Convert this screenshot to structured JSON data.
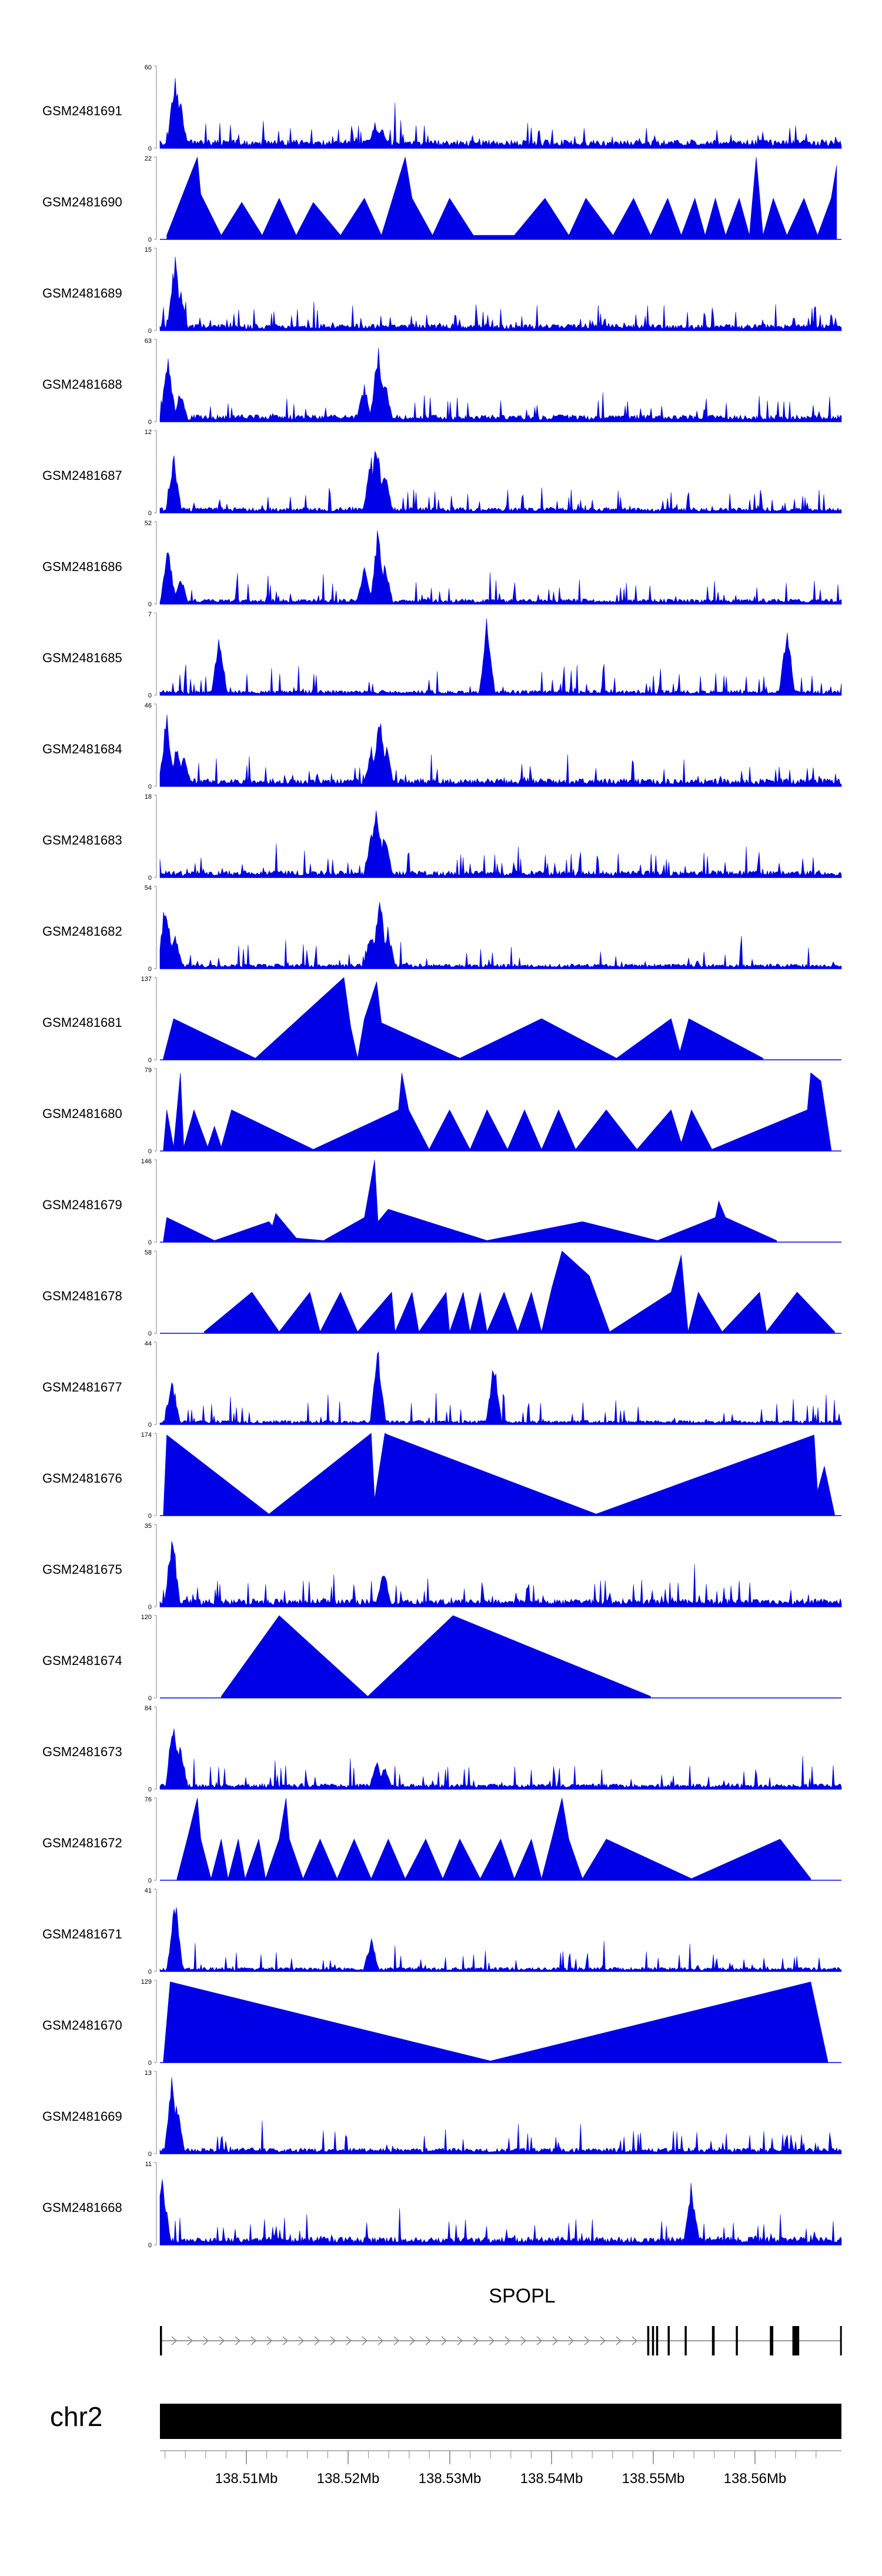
{
  "chart_data": {
    "type": "area",
    "title": "",
    "chromosome": "chr2",
    "gene": {
      "name": "SPOPL",
      "strand": "+"
    },
    "x": {
      "label": "",
      "ticks": [
        "138.51Mb",
        "138.52Mb",
        "138.53Mb",
        "138.54Mb",
        "138.55Mb",
        "138.56Mb"
      ],
      "tick_values": [
        138.51,
        138.52,
        138.53,
        138.54,
        138.55,
        138.56
      ],
      "range": [
        138.5015,
        138.5685
      ]
    },
    "tracks": [
      {
        "name": "GSM2481691",
        "ymax": "60",
        "ymin": "0",
        "style": "dense",
        "peaks": [
          [
            0.022,
            1.0
          ],
          [
            0.03,
            0.6
          ],
          [
            0.316,
            0.33
          ],
          [
            0.325,
            0.3
          ]
        ]
      },
      {
        "name": "GSM2481690",
        "ymax": "22",
        "ymin": "0",
        "style": "sparse",
        "peaks": [
          [
            0.01,
            0.05
          ],
          [
            0.055,
            1.0
          ],
          [
            0.06,
            0.55
          ],
          [
            0.09,
            0.05
          ],
          [
            0.12,
            0.45
          ],
          [
            0.15,
            0.05
          ],
          [
            0.175,
            0.5
          ],
          [
            0.2,
            0.05
          ],
          [
            0.225,
            0.45
          ],
          [
            0.265,
            0.05
          ],
          [
            0.3,
            0.5
          ],
          [
            0.325,
            0.05
          ],
          [
            0.36,
            1.0
          ],
          [
            0.37,
            0.5
          ],
          [
            0.4,
            0.05
          ],
          [
            0.425,
            0.5
          ],
          [
            0.46,
            0.05
          ],
          [
            0.52,
            0.05
          ],
          [
            0.565,
            0.5
          ],
          [
            0.6,
            0.05
          ],
          [
            0.625,
            0.5
          ],
          [
            0.665,
            0.05
          ],
          [
            0.695,
            0.5
          ],
          [
            0.72,
            0.05
          ],
          [
            0.745,
            0.5
          ],
          [
            0.765,
            0.05
          ],
          [
            0.785,
            0.5
          ],
          [
            0.8,
            0.05
          ],
          [
            0.815,
            0.5
          ],
          [
            0.83,
            0.05
          ],
          [
            0.85,
            0.5
          ],
          [
            0.865,
            0.05
          ],
          [
            0.875,
            1.0
          ],
          [
            0.885,
            0.05
          ],
          [
            0.9,
            0.5
          ],
          [
            0.92,
            0.05
          ],
          [
            0.945,
            0.5
          ],
          [
            0.965,
            0.05
          ],
          [
            0.985,
            0.5
          ],
          [
            0.993,
            0.9
          ]
        ]
      },
      {
        "name": "GSM2481689",
        "ymax": "15",
        "ymin": "0",
        "style": "dense",
        "peaks": [
          [
            0.022,
            0.95
          ],
          [
            0.03,
            0.55
          ]
        ]
      },
      {
        "name": "GSM2481688",
        "ymax": "63",
        "ymin": "0",
        "style": "dense",
        "peaks": [
          [
            0.012,
            0.9
          ],
          [
            0.03,
            0.4
          ],
          [
            0.3,
            0.5
          ],
          [
            0.32,
            1.0
          ],
          [
            0.33,
            0.6
          ]
        ]
      },
      {
        "name": "GSM2481687",
        "ymax": "12",
        "ymin": "0",
        "style": "dense",
        "peaks": [
          [
            0.02,
            0.8
          ],
          [
            0.31,
            0.75
          ],
          [
            0.318,
            1.0
          ],
          [
            0.33,
            0.55
          ]
        ]
      },
      {
        "name": "GSM2481686",
        "ymax": "52",
        "ymin": "0",
        "style": "dense",
        "peaks": [
          [
            0.012,
            0.75
          ],
          [
            0.03,
            0.4
          ],
          [
            0.3,
            0.5
          ],
          [
            0.32,
            1.0
          ],
          [
            0.33,
            0.6
          ]
        ]
      },
      {
        "name": "GSM2481685",
        "ymax": "7",
        "ymin": "0",
        "style": "dense",
        "peaks": [
          [
            0.087,
            0.85
          ],
          [
            0.48,
            1.0
          ],
          [
            0.92,
            0.9
          ]
        ]
      },
      {
        "name": "GSM2481684",
        "ymax": "46",
        "ymin": "0",
        "style": "dense",
        "peaks": [
          [
            0.01,
            0.95
          ],
          [
            0.025,
            0.6
          ],
          [
            0.035,
            0.4
          ],
          [
            0.31,
            0.5
          ],
          [
            0.322,
            1.0
          ],
          [
            0.332,
            0.55
          ]
        ]
      },
      {
        "name": "GSM2481683",
        "ymax": "18",
        "ymin": "0",
        "style": "dense",
        "peaks": [
          [
            0.31,
            0.6
          ],
          [
            0.318,
            1.0
          ],
          [
            0.33,
            0.6
          ]
        ]
      },
      {
        "name": "GSM2481682",
        "ymax": "54",
        "ymin": "0",
        "style": "dense",
        "peaks": [
          [
            0.008,
            0.95
          ],
          [
            0.022,
            0.45
          ],
          [
            0.31,
            0.5
          ],
          [
            0.322,
            1.0
          ],
          [
            0.334,
            0.55
          ]
        ]
      },
      {
        "name": "GSM2481681",
        "ymax": "137",
        "ymin": "0",
        "style": "sparse",
        "peaks": [
          [
            0.005,
            0.02
          ],
          [
            0.02,
            0.5
          ],
          [
            0.14,
            0.02
          ],
          [
            0.27,
            1.0
          ],
          [
            0.28,
            0.4
          ],
          [
            0.29,
            0.02
          ],
          [
            0.3,
            0.5
          ],
          [
            0.318,
            0.95
          ],
          [
            0.325,
            0.45
          ],
          [
            0.44,
            0.02
          ],
          [
            0.56,
            0.5
          ],
          [
            0.67,
            0.02
          ],
          [
            0.75,
            0.5
          ],
          [
            0.763,
            0.1
          ],
          [
            0.776,
            0.5
          ],
          [
            0.885,
            0.02
          ]
        ]
      },
      {
        "name": "GSM2481680",
        "ymax": "79",
        "ymin": "0",
        "style": "sparse",
        "peaks": [
          [
            0.005,
            0.02
          ],
          [
            0.01,
            0.5
          ],
          [
            0.02,
            0.05
          ],
          [
            0.03,
            0.95
          ],
          [
            0.035,
            0.05
          ],
          [
            0.05,
            0.5
          ],
          [
            0.07,
            0.05
          ],
          [
            0.08,
            0.3
          ],
          [
            0.09,
            0.05
          ],
          [
            0.105,
            0.5
          ],
          [
            0.225,
            0.02
          ],
          [
            0.35,
            0.5
          ],
          [
            0.355,
            0.95
          ],
          [
            0.365,
            0.5
          ],
          [
            0.395,
            0.02
          ],
          [
            0.425,
            0.5
          ],
          [
            0.455,
            0.02
          ],
          [
            0.48,
            0.5
          ],
          [
            0.51,
            0.02
          ],
          [
            0.535,
            0.5
          ],
          [
            0.56,
            0.02
          ],
          [
            0.585,
            0.5
          ],
          [
            0.61,
            0.02
          ],
          [
            0.655,
            0.5
          ],
          [
            0.7,
            0.02
          ],
          [
            0.75,
            0.5
          ],
          [
            0.765,
            0.1
          ],
          [
            0.78,
            0.5
          ],
          [
            0.81,
            0.02
          ],
          [
            0.95,
            0.5
          ],
          [
            0.955,
            0.95
          ],
          [
            0.97,
            0.85
          ],
          [
            0.985,
            0.02
          ]
        ]
      },
      {
        "name": "GSM2481679",
        "ymax": "146",
        "ymin": "0",
        "style": "sparse",
        "peaks": [
          [
            0.005,
            0.02
          ],
          [
            0.01,
            0.3
          ],
          [
            0.08,
            0.02
          ],
          [
            0.16,
            0.25
          ],
          [
            0.165,
            0.2
          ],
          [
            0.17,
            0.35
          ],
          [
            0.2,
            0.05
          ],
          [
            0.24,
            0.02
          ],
          [
            0.3,
            0.3
          ],
          [
            0.315,
            1.0
          ],
          [
            0.32,
            0.25
          ],
          [
            0.335,
            0.4
          ],
          [
            0.48,
            0.02
          ],
          [
            0.62,
            0.25
          ],
          [
            0.73,
            0.02
          ],
          [
            0.815,
            0.3
          ],
          [
            0.82,
            0.5
          ],
          [
            0.83,
            0.3
          ],
          [
            0.905,
            0.02
          ]
        ]
      },
      {
        "name": "GSM2481678",
        "ymax": "58",
        "ymin": "0",
        "style": "sparse",
        "peaks": [
          [
            0.065,
            0.02
          ],
          [
            0.135,
            0.5
          ],
          [
            0.175,
            0.02
          ],
          [
            0.22,
            0.5
          ],
          [
            0.235,
            0.02
          ],
          [
            0.265,
            0.5
          ],
          [
            0.29,
            0.02
          ],
          [
            0.34,
            0.5
          ],
          [
            0.345,
            0.02
          ],
          [
            0.37,
            0.5
          ],
          [
            0.38,
            0.02
          ],
          [
            0.42,
            0.5
          ],
          [
            0.425,
            0.02
          ],
          [
            0.445,
            0.5
          ],
          [
            0.455,
            0.02
          ],
          [
            0.47,
            0.5
          ],
          [
            0.48,
            0.02
          ],
          [
            0.505,
            0.5
          ],
          [
            0.525,
            0.02
          ],
          [
            0.545,
            0.5
          ],
          [
            0.56,
            0.02
          ],
          [
            0.575,
            0.55
          ],
          [
            0.59,
            1.0
          ],
          [
            0.63,
            0.7
          ],
          [
            0.66,
            0.02
          ],
          [
            0.75,
            0.5
          ],
          [
            0.765,
            0.95
          ],
          [
            0.775,
            0.02
          ],
          [
            0.79,
            0.5
          ],
          [
            0.825,
            0.02
          ],
          [
            0.88,
            0.5
          ],
          [
            0.89,
            0.02
          ],
          [
            0.935,
            0.5
          ],
          [
            0.99,
            0.02
          ]
        ]
      },
      {
        "name": "GSM2481677",
        "ymax": "44",
        "ymin": "0",
        "style": "dense",
        "peaks": [
          [
            0.018,
            0.6
          ],
          [
            0.32,
            1.0
          ],
          [
            0.49,
            0.85
          ]
        ]
      },
      {
        "name": "GSM2481676",
        "ymax": "174",
        "ymin": "0",
        "style": "sparse",
        "peaks": [
          [
            0.005,
            0.02
          ],
          [
            0.01,
            0.98
          ],
          [
            0.16,
            0.02
          ],
          [
            0.31,
            1.0
          ],
          [
            0.315,
            0.2
          ],
          [
            0.33,
            1.0
          ],
          [
            0.335,
            0.98
          ],
          [
            0.64,
            0.02
          ],
          [
            0.96,
            0.98
          ],
          [
            0.965,
            0.3
          ],
          [
            0.975,
            0.6
          ],
          [
            0.99,
            0.02
          ]
        ]
      },
      {
        "name": "GSM2481675",
        "ymax": "35",
        "ymin": "0",
        "style": "dense",
        "peaks": [
          [
            0.018,
            1.0
          ],
          [
            0.328,
            0.55
          ]
        ]
      },
      {
        "name": "GSM2481674",
        "ymax": "120",
        "ymin": "0",
        "style": "sparse",
        "peaks": [
          [
            0.09,
            0.02
          ],
          [
            0.175,
            1.0
          ],
          [
            0.305,
            0.02
          ],
          [
            0.43,
            1.0
          ],
          [
            0.72,
            0.02
          ]
        ]
      },
      {
        "name": "GSM2481673",
        "ymax": "84",
        "ymin": "0",
        "style": "dense",
        "peaks": [
          [
            0.02,
            1.0
          ],
          [
            0.03,
            0.55
          ],
          [
            0.318,
            0.35
          ],
          [
            0.33,
            0.3
          ]
        ]
      },
      {
        "name": "GSM2481672",
        "ymax": "76",
        "ymin": "0",
        "style": "sparse",
        "peaks": [
          [
            0.025,
            0.02
          ],
          [
            0.04,
            0.5
          ],
          [
            0.055,
            1.0
          ],
          [
            0.06,
            0.5
          ],
          [
            0.075,
            0.02
          ],
          [
            0.09,
            0.5
          ],
          [
            0.1,
            0.02
          ],
          [
            0.115,
            0.5
          ],
          [
            0.125,
            0.02
          ],
          [
            0.145,
            0.5
          ],
          [
            0.155,
            0.02
          ],
          [
            0.175,
            0.5
          ],
          [
            0.185,
            1.0
          ],
          [
            0.19,
            0.5
          ],
          [
            0.21,
            0.02
          ],
          [
            0.235,
            0.5
          ],
          [
            0.26,
            0.02
          ],
          [
            0.285,
            0.5
          ],
          [
            0.31,
            0.02
          ],
          [
            0.335,
            0.5
          ],
          [
            0.36,
            0.02
          ],
          [
            0.39,
            0.5
          ],
          [
            0.415,
            0.02
          ],
          [
            0.44,
            0.5
          ],
          [
            0.47,
            0.02
          ],
          [
            0.5,
            0.5
          ],
          [
            0.52,
            0.02
          ],
          [
            0.545,
            0.5
          ],
          [
            0.56,
            0.02
          ],
          [
            0.575,
            0.5
          ],
          [
            0.59,
            1.0
          ],
          [
            0.6,
            0.5
          ],
          [
            0.62,
            0.02
          ],
          [
            0.655,
            0.5
          ],
          [
            0.78,
            0.02
          ],
          [
            0.91,
            0.5
          ],
          [
            0.955,
            0.02
          ]
        ]
      },
      {
        "name": "GSM2481671",
        "ymax": "41",
        "ymin": "0",
        "style": "dense",
        "peaks": [
          [
            0.022,
            1.0
          ],
          [
            0.31,
            0.45
          ]
        ]
      },
      {
        "name": "GSM2481670",
        "ymax": "129",
        "ymin": "0",
        "style": "sparse",
        "peaks": [
          [
            0.005,
            0.02
          ],
          [
            0.015,
            0.98
          ],
          [
            0.485,
            0.02
          ],
          [
            0.955,
            0.98
          ],
          [
            0.98,
            0.02
          ]
        ]
      },
      {
        "name": "GSM2481669",
        "ymax": "13",
        "ymin": "0",
        "style": "dense",
        "peaks": [
          [
            0.018,
            1.0
          ],
          [
            0.025,
            0.7
          ]
        ]
      },
      {
        "name": "GSM2481668",
        "ymax": "11",
        "ymin": "0",
        "style": "dense",
        "peaks": [
          [
            0.004,
            0.9
          ],
          [
            0.78,
            0.8
          ]
        ]
      }
    ],
    "gene_model": {
      "exons": [
        [
          0.0,
          0.003
        ],
        [
          0.715,
          0.718
        ],
        [
          0.722,
          0.725
        ],
        [
          0.728,
          0.731
        ],
        [
          0.745,
          0.748
        ],
        [
          0.77,
          0.773
        ],
        [
          0.81,
          0.814
        ],
        [
          0.845,
          0.848
        ],
        [
          0.895,
          0.9
        ],
        [
          0.928,
          0.936
        ],
        [
          0.935,
          0.938
        ],
        [
          0.998,
          1.0
        ]
      ]
    }
  },
  "colors": {
    "track": "#0000e6",
    "axis": "#000000",
    "ideogram": "#000000"
  }
}
